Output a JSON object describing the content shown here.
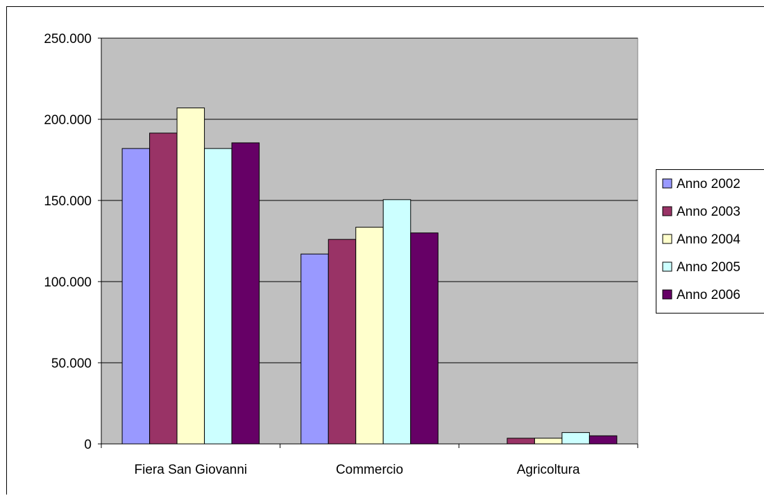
{
  "chart_data": {
    "type": "bar",
    "title": "",
    "xlabel": "",
    "ylabel": "",
    "categories": [
      "Fiera San Giovanni",
      "Commercio",
      "Agricoltura"
    ],
    "ylim": [
      0,
      250000
    ],
    "ytick_values": [
      0,
      50000,
      100000,
      150000,
      200000,
      250000
    ],
    "ytick_labels": [
      "0",
      "50.000",
      "100.000",
      "150.000",
      "200.000",
      "250.000"
    ],
    "grid": true,
    "legend_position": "right",
    "plot_background": "#c0c0c0",
    "series": [
      {
        "name": "Anno 2002",
        "color": "#9999ff",
        "values": [
          182000,
          117000,
          0
        ]
      },
      {
        "name": "Anno 2003",
        "color": "#993366",
        "values": [
          191500,
          126000,
          3500
        ]
      },
      {
        "name": "Anno 2004",
        "color": "#ffffcc",
        "values": [
          207000,
          133500,
          3500
        ]
      },
      {
        "name": "Anno 2005",
        "color": "#ccffff",
        "values": [
          182000,
          150500,
          7000
        ]
      },
      {
        "name": "Anno 2006",
        "color": "#660066",
        "values": [
          185500,
          130000,
          5000
        ]
      }
    ]
  }
}
